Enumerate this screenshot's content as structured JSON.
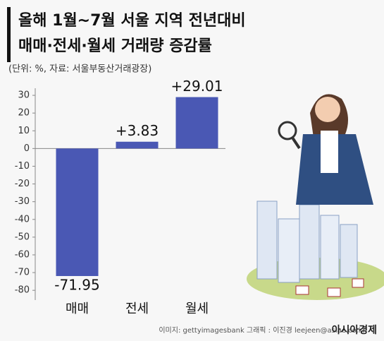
{
  "chart_data": {
    "type": "bar",
    "title": [
      "올해 1월~7월 서울 지역 전년대비",
      "매매·전세·월세 거래량 증감률"
    ],
    "subtitle": "(단위: %, 자료: 서울부동산거래광장)",
    "categories": [
      "매매",
      "전세",
      "월세"
    ],
    "values": [
      -71.95,
      3.83,
      29.01
    ],
    "value_labels": [
      "-71.95",
      "+3.83",
      "+29.01"
    ],
    "color": "#4a58b4",
    "ylim": [
      -85.5,
      34
    ],
    "yticks": [
      30,
      20,
      10,
      0,
      -10,
      -20,
      -30,
      -40,
      -50,
      -60,
      -70,
      -80
    ]
  },
  "footer": {
    "credit": "이미지: gettyimagesbank   그래픽 : 이진경 leejeen@asiae.co.kr",
    "logo": "아시아경제"
  }
}
